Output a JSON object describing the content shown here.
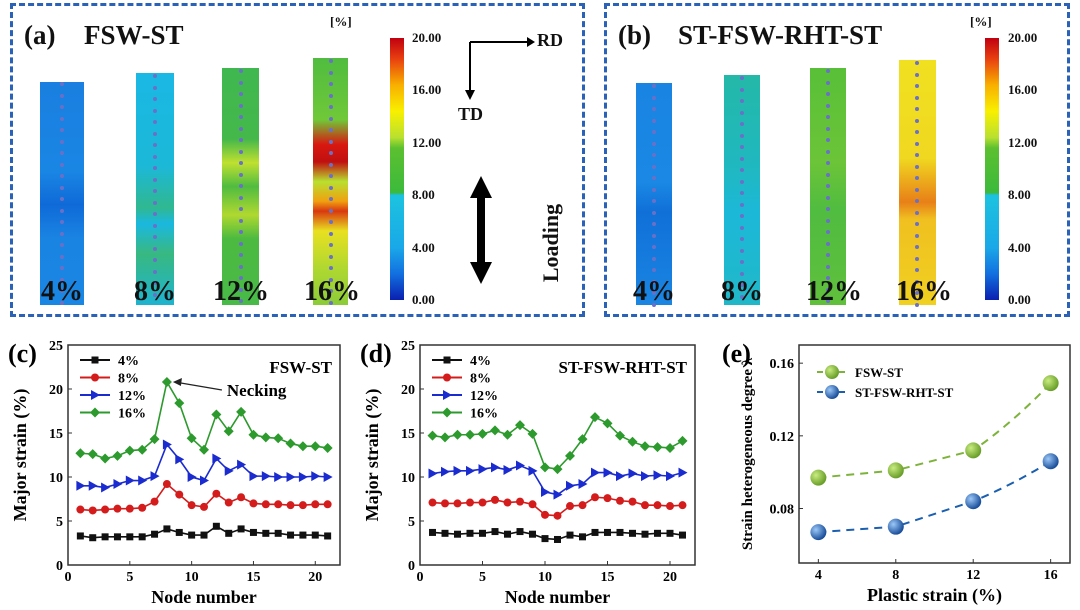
{
  "panel_a": {
    "label": "(a)",
    "title": "FSW-ST",
    "unit": "[%]",
    "strips": [
      "4%",
      "8%",
      "12%",
      "16%"
    ],
    "colorbar_ticks": [
      "20.00",
      "16.00",
      "12.00",
      "8.00",
      "4.00",
      "0.00"
    ],
    "axes": {
      "rd": "RD",
      "td": "TD"
    },
    "loading": "Loading"
  },
  "panel_b": {
    "label": "(b)",
    "title": "ST-FSW-RHT-ST",
    "unit": "[%]",
    "strips": [
      "4%",
      "8%",
      "12%",
      "16%"
    ],
    "colorbar_ticks": [
      "20.00",
      "16.00",
      "12.00",
      "8.00",
      "4.00",
      "0.00"
    ]
  },
  "colors": {
    "s4": "#111111",
    "s8": "#d41c1c",
    "s12": "#1a2bd0",
    "s16": "#2c9a2c",
    "fsw": "#7db33a",
    "rht": "#1a5fb0",
    "frame": "#2a62b8"
  },
  "chart_data": [
    {
      "type": "line",
      "panel_label": "(c)",
      "title": "FSW-ST",
      "xlabel": "Node number",
      "ylabel": "Major strain (%)",
      "xlim": [
        0,
        22
      ],
      "ylim": [
        0,
        25
      ],
      "xticks": [
        0,
        5,
        10,
        15,
        20
      ],
      "yticks": [
        0,
        5,
        10,
        15,
        20,
        25
      ],
      "legend": "top-left",
      "grid": false,
      "annotation": {
        "text": "Necking",
        "x": 8,
        "y": 20.8
      },
      "x": [
        1,
        2,
        3,
        4,
        5,
        6,
        7,
        8,
        9,
        10,
        11,
        12,
        13,
        14,
        15,
        16,
        17,
        18,
        19,
        20,
        21
      ],
      "series": [
        {
          "name": "4%",
          "marker": "square",
          "values": [
            3.3,
            3.1,
            3.2,
            3.2,
            3.2,
            3.2,
            3.5,
            4.1,
            3.7,
            3.4,
            3.4,
            4.4,
            3.6,
            4.1,
            3.7,
            3.6,
            3.6,
            3.4,
            3.4,
            3.4,
            3.3
          ]
        },
        {
          "name": "8%",
          "marker": "circle",
          "values": [
            6.3,
            6.2,
            6.3,
            6.4,
            6.4,
            6.5,
            7.2,
            9.2,
            8.0,
            6.8,
            6.6,
            8.1,
            7.1,
            7.7,
            7.0,
            6.9,
            6.9,
            6.8,
            6.8,
            6.9,
            6.9
          ]
        },
        {
          "name": "12%",
          "marker": "triangle-right",
          "values": [
            9.0,
            9.0,
            8.8,
            9.2,
            9.6,
            9.6,
            10.1,
            13.7,
            12.0,
            10.0,
            9.6,
            12.1,
            10.7,
            11.4,
            10.1,
            10.1,
            10.0,
            10.0,
            10.0,
            10.1,
            10.0
          ]
        },
        {
          "name": "16%",
          "marker": "diamond",
          "values": [
            12.7,
            12.6,
            12.1,
            12.4,
            13.0,
            13.1,
            14.3,
            20.8,
            18.4,
            14.4,
            13.1,
            17.1,
            15.2,
            17.4,
            14.8,
            14.5,
            14.4,
            13.8,
            13.5,
            13.5,
            13.3
          ]
        }
      ]
    },
    {
      "type": "line",
      "panel_label": "(d)",
      "title": "ST-FSW-RHT-ST",
      "xlabel": "Node number",
      "ylabel": "Major strain (%)",
      "xlim": [
        0,
        22
      ],
      "ylim": [
        0,
        25
      ],
      "xticks": [
        0,
        5,
        10,
        15,
        20
      ],
      "yticks": [
        0,
        5,
        10,
        15,
        20,
        25
      ],
      "legend": "top-left",
      "grid": false,
      "x": [
        1,
        2,
        3,
        4,
        5,
        6,
        7,
        8,
        9,
        10,
        11,
        12,
        13,
        14,
        15,
        16,
        17,
        18,
        19,
        20,
        21
      ],
      "series": [
        {
          "name": "4%",
          "marker": "square",
          "values": [
            3.7,
            3.6,
            3.5,
            3.6,
            3.6,
            3.8,
            3.5,
            3.8,
            3.5,
            3.0,
            2.9,
            3.4,
            3.2,
            3.7,
            3.7,
            3.7,
            3.6,
            3.5,
            3.6,
            3.6,
            3.4
          ]
        },
        {
          "name": "8%",
          "marker": "circle",
          "values": [
            7.1,
            7.0,
            7.0,
            7.1,
            7.1,
            7.4,
            7.1,
            7.2,
            6.9,
            5.7,
            5.6,
            6.7,
            6.8,
            7.7,
            7.6,
            7.3,
            7.2,
            6.8,
            6.8,
            6.7,
            6.8
          ]
        },
        {
          "name": "12%",
          "marker": "triangle-right",
          "values": [
            10.4,
            10.6,
            10.7,
            10.7,
            10.9,
            11.1,
            10.8,
            11.3,
            10.7,
            8.3,
            8.0,
            9.0,
            9.2,
            10.5,
            10.5,
            10.1,
            10.4,
            10.1,
            10.2,
            10.1,
            10.5
          ]
        },
        {
          "name": "16%",
          "marker": "diamond",
          "values": [
            14.7,
            14.5,
            14.8,
            14.8,
            14.9,
            15.3,
            14.8,
            15.9,
            14.9,
            11.1,
            10.9,
            12.4,
            14.3,
            16.8,
            16.1,
            14.7,
            14.0,
            13.5,
            13.4,
            13.3,
            14.1
          ]
        }
      ]
    },
    {
      "type": "line",
      "panel_label": "(e)",
      "xlabel": "Plastic strain (%)",
      "ylabel": "Strain heterogeneous  degree λ",
      "xlim": [
        3,
        17
      ],
      "ylim": [
        0.05,
        0.17
      ],
      "xticks": [
        4,
        8,
        12,
        16
      ],
      "yticks": [
        0.08,
        0.12,
        0.16
      ],
      "ytick_labels": [
        "0.08",
        "0.12",
        "0.16"
      ],
      "legend": "top-left",
      "grid": false,
      "x": [
        4,
        8,
        12,
        16
      ],
      "series": [
        {
          "name": "FSW-ST",
          "marker": "sphere",
          "values": [
            0.097,
            0.101,
            0.112,
            0.149
          ]
        },
        {
          "name": "ST-FSW-RHT-ST",
          "marker": "sphere",
          "values": [
            0.067,
            0.07,
            0.084,
            0.106
          ]
        }
      ]
    }
  ]
}
